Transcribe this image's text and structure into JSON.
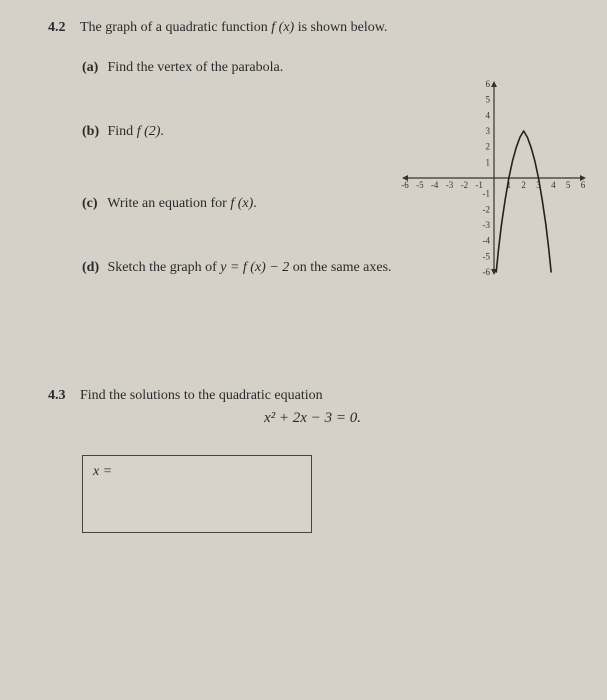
{
  "problem42": {
    "number": "4.2",
    "intro_pre": "The graph of a quadratic function ",
    "intro_fx": "f (x)",
    "intro_post": " is shown below.",
    "parts": {
      "a": {
        "label": "(a)",
        "text": "Find the vertex of the parabola."
      },
      "b": {
        "label": "(b)",
        "text_pre": "Find ",
        "text_fx": "f (2)",
        "text_post": "."
      },
      "c": {
        "label": "(c)",
        "text_pre": "Write an equation for ",
        "text_fx": "f (x)",
        "text_post": "."
      },
      "d": {
        "label": "(d)",
        "text_pre": "Sketch the graph of ",
        "text_eq": "y = f (x) − 2",
        "text_post": " on the same axes."
      }
    }
  },
  "graph": {
    "type": "line",
    "x_range": [
      -6,
      6
    ],
    "y_range": [
      -6,
      6
    ],
    "x_ticks": [
      -6,
      -5,
      -4,
      -3,
      -2,
      -1,
      1,
      2,
      3,
      4,
      5,
      6
    ],
    "y_ticks": [
      -6,
      -5,
      -4,
      -3,
      -2,
      -1,
      1,
      2,
      3,
      4,
      5,
      6
    ],
    "x_tick_labels": [
      "-6",
      "-5",
      "-4",
      "-3",
      "-2",
      "-1",
      "1",
      "2",
      "3",
      "4",
      "5",
      "6"
    ],
    "y_tick_labels": [
      "-6",
      "-5",
      "-4",
      "-3",
      "-2",
      "-1",
      "1",
      "2",
      "3",
      "4",
      "5",
      "6"
    ],
    "grid_color": "#d8cfc2",
    "axis_color": "#333333",
    "curve_color": "#222222",
    "curve_width": 1.6,
    "tick_font_size": 9,
    "background": "#d5d1c8",
    "curve_points": [
      [
        0.15,
        -6
      ],
      [
        0.3,
        -4.6
      ],
      [
        0.5,
        -3
      ],
      [
        0.75,
        -1.4
      ],
      [
        1,
        0
      ],
      [
        1.25,
        1.1
      ],
      [
        1.5,
        1.95
      ],
      [
        1.75,
        2.6
      ],
      [
        2,
        3
      ],
      [
        2.25,
        2.6
      ],
      [
        2.5,
        1.95
      ],
      [
        2.75,
        1.1
      ],
      [
        3,
        0
      ],
      [
        3.25,
        -1.4
      ],
      [
        3.5,
        -3
      ],
      [
        3.7,
        -4.6
      ],
      [
        3.85,
        -6
      ]
    ]
  },
  "problem43": {
    "number": "4.3",
    "text": "Find the solutions to the quadratic equation",
    "equation": "x² + 2x − 3 = 0.",
    "answer_label": "x ="
  }
}
